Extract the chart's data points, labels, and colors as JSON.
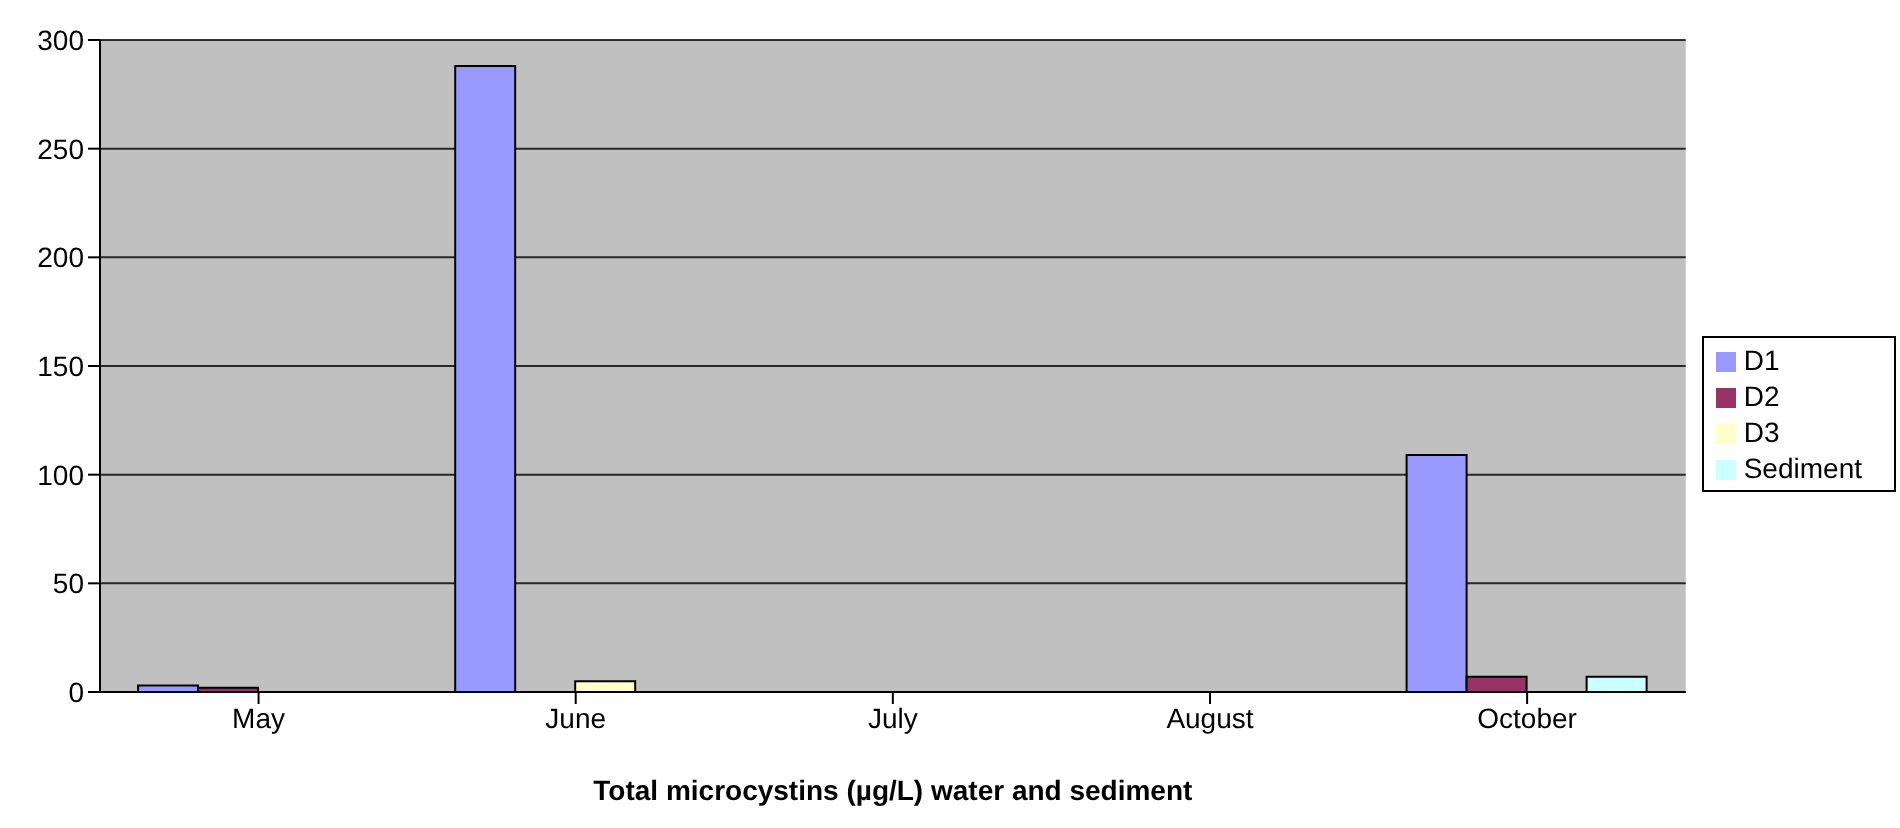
{
  "chart_data": {
    "type": "bar",
    "xlabel": "Total microcystins (µg/L) water and sediment",
    "categories": [
      "May",
      "June",
      "July",
      "August",
      "October"
    ],
    "series": [
      {
        "name": "D1",
        "color": "#9999ff",
        "values": [
          3,
          288,
          null,
          null,
          109
        ]
      },
      {
        "name": "D2",
        "color": "#993366",
        "values": [
          2,
          null,
          null,
          null,
          7
        ]
      },
      {
        "name": "D3",
        "color": "#ffffcc",
        "values": [
          null,
          5,
          null,
          null,
          null
        ]
      },
      {
        "name": "Sediment",
        "color": "#ccffff",
        "values": [
          null,
          null,
          null,
          null,
          7
        ]
      }
    ],
    "ylim": [
      0,
      300
    ],
    "yticks": [
      0,
      50,
      100,
      150,
      200,
      250,
      300
    ],
    "grid": "y",
    "legend": "right"
  }
}
